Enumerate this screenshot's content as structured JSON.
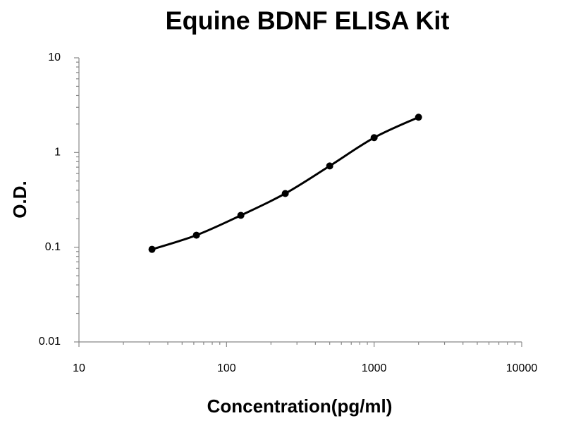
{
  "chart_data": {
    "type": "line",
    "title": "Equine BDNF ELISA Kit",
    "x_label": "Concentration(pg/ml)",
    "y_label": "O.D.",
    "x": [
      31.25,
      62.5,
      125,
      250,
      500,
      1000,
      2000
    ],
    "series": [
      {
        "name": "O.D.",
        "color": "#000000",
        "values": [
          0.095,
          0.134,
          0.217,
          0.369,
          0.721,
          1.435,
          2.36
        ]
      }
    ],
    "xlim": [
      10,
      10000
    ],
    "xticks": [
      10,
      100,
      1000,
      10000
    ],
    "ylim": [
      0.01,
      10
    ],
    "yticks": [
      0.01,
      0.1,
      1,
      10
    ],
    "xscale": "log",
    "yscale": "log",
    "grid": false
  }
}
